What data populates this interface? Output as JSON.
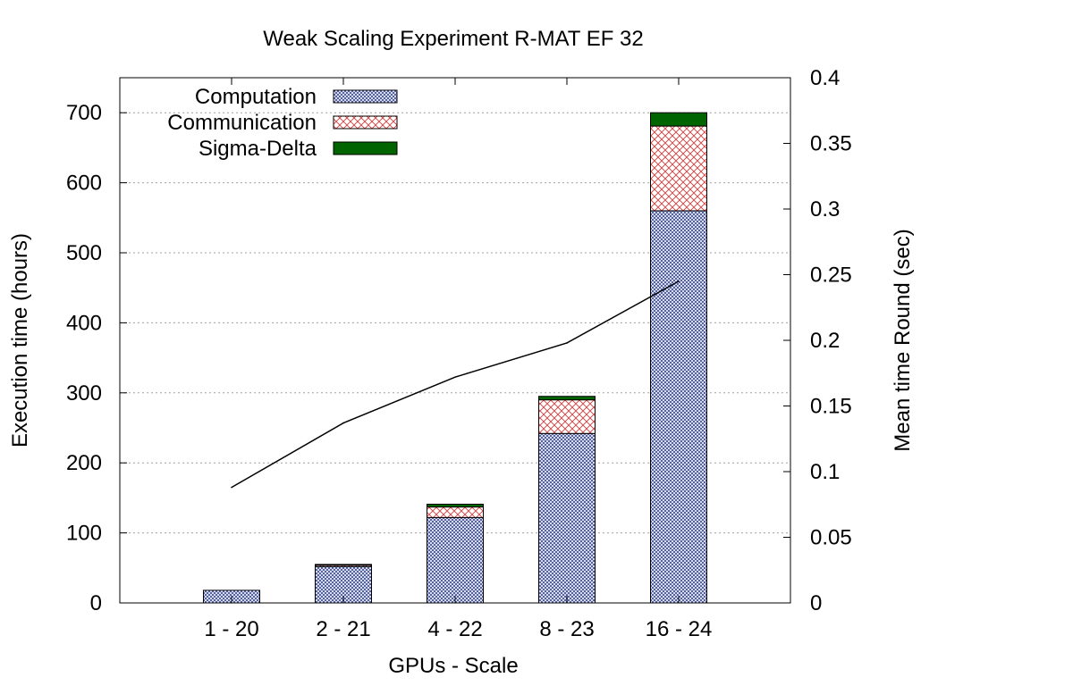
{
  "chart_data": {
    "type": "bar",
    "subtype": "stacked-bar-with-line",
    "title": "Weak Scaling Experiment R-MAT EF 32",
    "xlabel": "GPUs - Scale",
    "ylabel": "Execution time (hours)",
    "y2label": "Mean time Round (sec)",
    "categories": [
      "1 - 20",
      "2 - 21",
      "4 - 22",
      "8 - 23",
      "16 - 24"
    ],
    "ylim": [
      0,
      750
    ],
    "yticks": [
      0,
      100,
      200,
      300,
      400,
      500,
      600,
      700
    ],
    "y2lim": [
      0,
      0.4
    ],
    "y2ticks": [
      0,
      0.05,
      0.1,
      0.15,
      0.2,
      0.25,
      0.3,
      0.35,
      0.4
    ],
    "y2tick_labels": [
      "0",
      "0.05",
      "0.1",
      "0.15",
      "0.2",
      "0.25",
      "0.3",
      "0.35",
      "0.4"
    ],
    "grid": true,
    "legend_position": "top-left",
    "series": [
      {
        "name": "Computation",
        "axis": "y",
        "kind": "stacked-bar",
        "color": "#3a4a9a",
        "pattern": "dense-crosshatch",
        "values": [
          18,
          52,
          122,
          242,
          560
        ]
      },
      {
        "name": "Communication",
        "axis": "y",
        "kind": "stacked-bar",
        "color": "#e03030",
        "pattern": "sparse-crosshatch",
        "values": [
          0,
          2,
          15,
          48,
          121
        ]
      },
      {
        "name": "Sigma-Delta",
        "axis": "y",
        "kind": "stacked-bar",
        "color": "#006400",
        "pattern": "solid",
        "values": [
          0,
          1,
          4,
          5,
          19
        ]
      },
      {
        "name": "Mean time Round",
        "axis": "y2",
        "kind": "line",
        "color": "#000000",
        "values": [
          0.088,
          0.137,
          0.172,
          0.198,
          0.245
        ],
        "in_legend": false
      }
    ]
  }
}
